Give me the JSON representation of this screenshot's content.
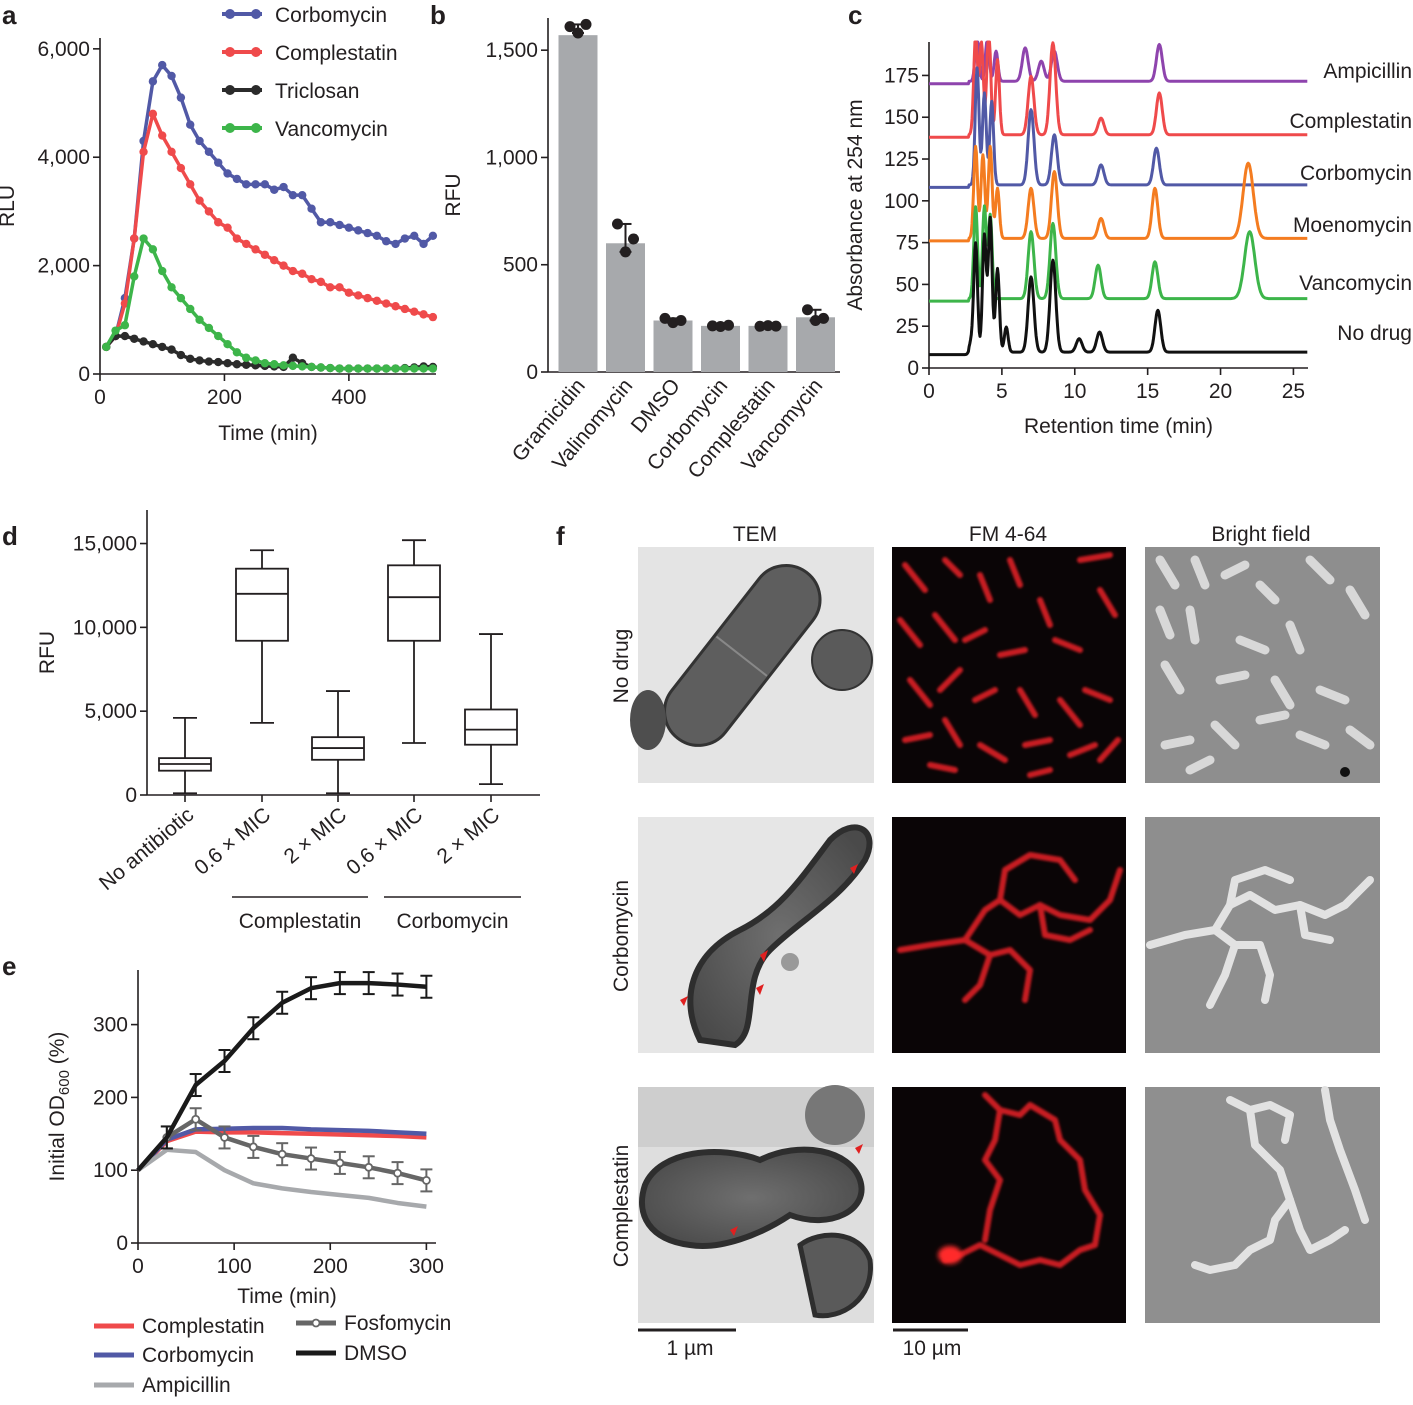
{
  "panel_letters": {
    "a": "a",
    "b": "b",
    "c": "c",
    "d": "d",
    "e": "e",
    "f": "f"
  },
  "colors": {
    "corbomycin": "#5159a6",
    "complestatin": "#ef4a4b",
    "triclosan": "#2b2b2b",
    "vancomycin": "#3db54a",
    "ampicillin_c": "#8e44ad",
    "moenomycin": "#f47c20",
    "nodrug": "#111111",
    "bar": "#a7a9ac",
    "fosfomycin": "#666666",
    "ampicillin_e": "#a7a9ac",
    "dmso": "#1a1a1a"
  },
  "chart_data": [
    {
      "panel": "a",
      "type": "line",
      "xlabel": "Time (min)",
      "ylabel": "RLU",
      "xlim": [
        0,
        540
      ],
      "ylim": [
        0,
        6200
      ],
      "xticks": [
        0,
        200,
        400
      ],
      "xtick_labels": [
        "0",
        "200",
        "400"
      ],
      "yticks": [
        0,
        2000,
        4000,
        6000
      ],
      "ytick_labels": [
        "0",
        "2,000",
        "4,000",
        "6,000"
      ],
      "x": [
        10,
        25,
        40,
        55,
        70,
        85,
        100,
        115,
        130,
        145,
        160,
        175,
        190,
        205,
        220,
        235,
        250,
        265,
        280,
        295,
        310,
        325,
        340,
        355,
        370,
        385,
        400,
        415,
        430,
        445,
        460,
        475,
        490,
        505,
        520,
        535
      ],
      "series": [
        {
          "name": "Corbomycin",
          "color_key": "corbomycin",
          "values": [
            500,
            700,
            1400,
            2500,
            4300,
            5400,
            5700,
            5500,
            5100,
            4600,
            4300,
            4100,
            3900,
            3700,
            3600,
            3500,
            3500,
            3500,
            3400,
            3450,
            3300,
            3300,
            3050,
            2800,
            2800,
            2750,
            2700,
            2650,
            2600,
            2550,
            2450,
            2400,
            2500,
            2550,
            2400,
            2550
          ]
        },
        {
          "name": "Complestatin",
          "color_key": "complestatin",
          "values": [
            500,
            700,
            1300,
            2500,
            4100,
            4800,
            4400,
            4100,
            3800,
            3500,
            3200,
            3000,
            2800,
            2700,
            2500,
            2400,
            2300,
            2200,
            2100,
            2000,
            1900,
            1850,
            1750,
            1700,
            1600,
            1600,
            1500,
            1450,
            1400,
            1350,
            1300,
            1250,
            1200,
            1150,
            1100,
            1050
          ]
        },
        {
          "name": "Triclosan",
          "color_key": "triclosan",
          "values": [
            500,
            700,
            700,
            650,
            600,
            550,
            500,
            450,
            350,
            280,
            250,
            230,
            220,
            200,
            180,
            170,
            160,
            150,
            140,
            130,
            300,
            200,
            130,
            120,
            110,
            100,
            100,
            100,
            100,
            100,
            100,
            100,
            110,
            120,
            140,
            130
          ]
        },
        {
          "name": "Vancomycin",
          "color_key": "vancomycin",
          "values": [
            500,
            800,
            900,
            1800,
            2500,
            2300,
            1900,
            1600,
            1400,
            1200,
            1000,
            850,
            700,
            550,
            400,
            300,
            250,
            200,
            180,
            160,
            150,
            140,
            130,
            120,
            110,
            100,
            100,
            100,
            100,
            100,
            100,
            100,
            100,
            100,
            100,
            100
          ]
        }
      ]
    },
    {
      "panel": "b",
      "type": "bar",
      "ylabel": "RFU",
      "ylim": [
        0,
        1650
      ],
      "yticks": [
        0,
        500,
        1000,
        1500
      ],
      "ytick_labels": [
        "0",
        "500",
        "1,000",
        "1,500"
      ],
      "categories": [
        "Gramicidin",
        "Valinomycin",
        "DMSO",
        "Corbomycin",
        "Complestatin",
        "Vancomycin"
      ],
      "values": [
        1570,
        600,
        240,
        215,
        215,
        255
      ],
      "points": [
        [
          1610,
          1580,
          1620
        ],
        [
          690,
          560,
          620
        ],
        [
          250,
          230,
          240
        ],
        [
          215,
          212,
          218
        ],
        [
          213,
          216,
          214
        ],
        [
          290,
          240,
          250
        ]
      ]
    },
    {
      "panel": "c",
      "type": "line",
      "xlabel": "Retention time (min)",
      "ylabel": "Absorbance at 254 nm",
      "xlim": [
        0,
        26
      ],
      "ylim": [
        0,
        195
      ],
      "xticks": [
        0,
        5,
        10,
        15,
        20,
        25
      ],
      "xtick_labels": [
        "0",
        "5",
        "10",
        "15",
        "20",
        "25"
      ],
      "yticks": [
        0,
        25,
        50,
        75,
        100,
        125,
        150,
        175
      ],
      "ytick_labels": [
        "0",
        "25",
        "50",
        "75",
        "100",
        "125",
        "150",
        "175"
      ],
      "series": [
        {
          "name": "Ampicillin",
          "color_key": "ampicillin_c",
          "offset": 170,
          "peaks": [
            [
              3.3,
              30
            ],
            [
              4.0,
              25
            ],
            [
              4.6,
              18
            ],
            [
              6.6,
              20
            ],
            [
              7.7,
              12
            ],
            [
              8.6,
              18
            ],
            [
              15.8,
              22
            ]
          ]
        },
        {
          "name": "Complestatin",
          "color_key": "complestatin",
          "offset": 138,
          "peaks": [
            [
              3.2,
              60
            ],
            [
              3.6,
              55
            ],
            [
              4.1,
              65
            ],
            [
              4.7,
              45
            ],
            [
              7.0,
              35
            ],
            [
              8.5,
              55
            ],
            [
              11.8,
              10
            ],
            [
              15.8,
              25
            ]
          ]
        },
        {
          "name": "Corbomycin",
          "color_key": "corbomycin",
          "offset": 108,
          "peaks": [
            [
              3.3,
              70
            ],
            [
              3.8,
              55
            ],
            [
              4.3,
              50
            ],
            [
              7.0,
              45
            ],
            [
              8.6,
              30
            ],
            [
              11.8,
              12
            ],
            [
              15.6,
              22
            ]
          ]
        },
        {
          "name": "Moenomycin",
          "color_key": "moenomycin",
          "offset": 76,
          "peaks": [
            [
              3.2,
              55
            ],
            [
              3.7,
              50
            ],
            [
              4.2,
              55
            ],
            [
              4.7,
              30
            ],
            [
              7.0,
              30
            ],
            [
              8.6,
              40
            ],
            [
              11.8,
              12
            ],
            [
              15.5,
              30
            ],
            [
              21.9,
              45
            ]
          ]
        },
        {
          "name": "Vancomycin",
          "color_key": "vancomycin",
          "offset": 40,
          "peaks": [
            [
              3.2,
              55
            ],
            [
              3.8,
              55
            ],
            [
              4.2,
              50
            ],
            [
              7.0,
              40
            ],
            [
              8.5,
              45
            ],
            [
              11.6,
              20
            ],
            [
              15.5,
              22
            ],
            [
              22.0,
              40
            ]
          ]
        },
        {
          "name": "No drug",
          "color_key": "nodrug",
          "offset": 8,
          "peaks": [
            [
              2.9,
              6
            ],
            [
              3.2,
              65
            ],
            [
              3.8,
              70
            ],
            [
              4.2,
              80
            ],
            [
              4.7,
              50
            ],
            [
              5.3,
              15
            ],
            [
              7.0,
              45
            ],
            [
              8.5,
              55
            ],
            [
              10.3,
              8
            ],
            [
              11.7,
              12
            ],
            [
              15.7,
              25
            ]
          ]
        }
      ]
    },
    {
      "panel": "d",
      "type": "box",
      "ylabel": "RFU",
      "ylim": [
        0,
        17000
      ],
      "yticks": [
        0,
        5000,
        10000,
        15000
      ],
      "ytick_labels": [
        "0",
        "5,000",
        "10,000",
        "15,000"
      ],
      "categories": [
        "No antibiotic",
        "0.6 × MIC",
        "2 × MIC",
        "0.6 × MIC",
        "2 × MIC"
      ],
      "boxes": [
        {
          "min": 100,
          "q1": 1450,
          "median": 1850,
          "q3": 2200,
          "max": 4600
        },
        {
          "min": 4300,
          "q1": 9200,
          "median": 12000,
          "q3": 13500,
          "max": 14600
        },
        {
          "min": 100,
          "q1": 2100,
          "median": 2800,
          "q3": 3450,
          "max": 6200
        },
        {
          "min": 3100,
          "q1": 9200,
          "median": 11800,
          "q3": 13700,
          "max": 15200
        },
        {
          "min": 650,
          "q1": 3000,
          "median": 3900,
          "q3": 5100,
          "max": 9600
        }
      ],
      "groups": [
        {
          "label": "Complestatin",
          "from": 1,
          "to": 2
        },
        {
          "label": "Corbomycin",
          "from": 3,
          "to": 4
        }
      ]
    },
    {
      "panel": "e",
      "type": "line",
      "xlabel": "Time (min)",
      "ylabel_main": "Initial OD",
      "ylabel_sub": "600",
      "ylabel_tail": " (%)",
      "xlim": [
        0,
        310
      ],
      "ylim": [
        0,
        375
      ],
      "xticks": [
        0,
        100,
        200,
        300
      ],
      "xtick_labels": [
        "0",
        "100",
        "200",
        "300"
      ],
      "yticks": [
        0,
        100,
        200,
        300
      ],
      "ytick_labels": [
        "0",
        "100",
        "200",
        "300"
      ],
      "x": [
        0,
        30,
        60,
        90,
        120,
        150,
        180,
        210,
        240,
        270,
        300
      ],
      "series": [
        {
          "name": "Complestatin",
          "color_key": "complestatin",
          "values": [
            100,
            140,
            153,
            152,
            152,
            151,
            150,
            149,
            148,
            147,
            145
          ]
        },
        {
          "name": "Corbomycin",
          "color_key": "corbomycin",
          "values": [
            100,
            142,
            156,
            157,
            158,
            158,
            156,
            155,
            154,
            152,
            150
          ]
        },
        {
          "name": "Ampicillin",
          "color_key": "ampicillin_e",
          "values": [
            100,
            128,
            125,
            100,
            82,
            75,
            70,
            66,
            62,
            55,
            50
          ]
        },
        {
          "name": "Fosfomycin",
          "color_key": "fosfomycin",
          "values": [
            100,
            145,
            170,
            145,
            132,
            122,
            116,
            110,
            104,
            96,
            86
          ]
        },
        {
          "name": "DMSO",
          "color_key": "dmso",
          "values": [
            100,
            145,
            217,
            250,
            295,
            330,
            350,
            357,
            357,
            355,
            352
          ]
        }
      ],
      "legend": [
        [
          "Complestatin",
          "complestatin"
        ],
        [
          "Fosfomycin",
          "fosfomycin"
        ],
        [
          "Corbomycin",
          "corbomycin"
        ],
        [
          "DMSO",
          "dmso"
        ],
        [
          "Ampicillin",
          "ampicillin_e"
        ]
      ]
    }
  ],
  "panel_f": {
    "columns": [
      "TEM",
      "FM 4-64",
      "Bright field"
    ],
    "rows": [
      "No drug",
      "Corbomycin",
      "Complestatin"
    ],
    "scalebars": [
      "1 µm",
      "10 µm"
    ]
  }
}
